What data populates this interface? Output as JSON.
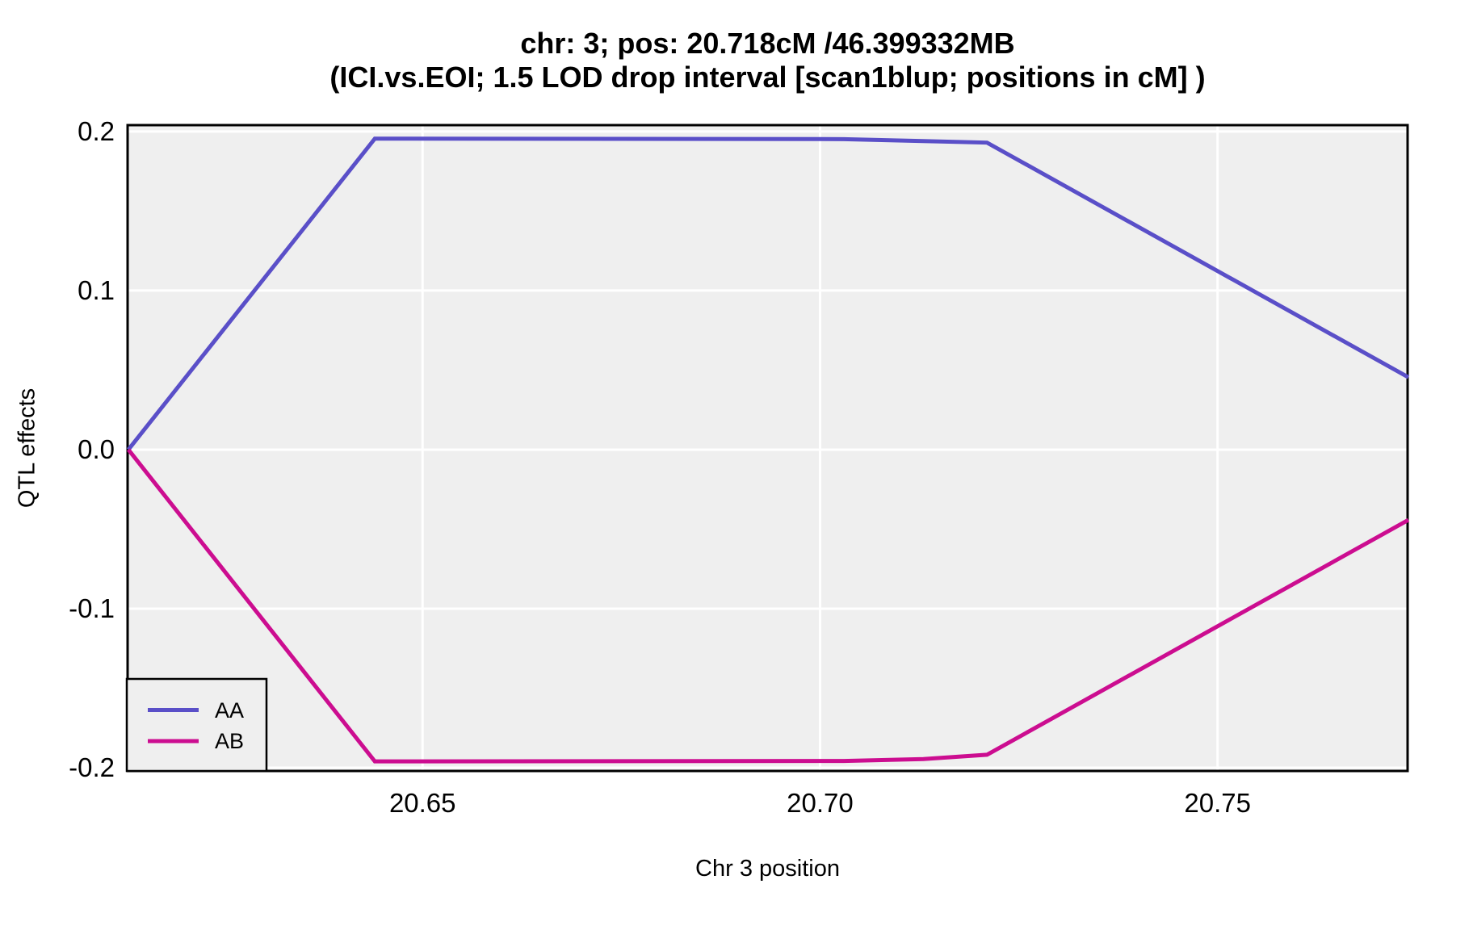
{
  "title": {
    "line1": "chr: 3; pos: 20.718cM /46.399332MB",
    "line2": "(ICI.vs.EOI; 1.5 LOD drop interval [scan1blup; positions in cM] )"
  },
  "axes": {
    "y_label": "QTL effects",
    "x_label": "Chr 3 position"
  },
  "legend": {
    "entries": [
      {
        "label": "AA",
        "color": "#5A4FC8"
      },
      {
        "label": "AB",
        "color": "#CC0D90"
      }
    ]
  },
  "colors": {
    "panel_bg": "#EFEFEF",
    "grid": "#FFFFFF",
    "border": "#000000",
    "text": "#000000",
    "aa_line": "#5A4FC8",
    "ab_line": "#CC0D90"
  },
  "chart_data": {
    "type": "line",
    "title": "chr: 3; pos: 20.718cM /46.399332MB (ICI.vs.EOI; 1.5 LOD drop interval [scan1blup; positions in cM] )",
    "xlabel": "Chr 3 position",
    "ylabel": "QTL effects",
    "x": [
      20.613,
      20.644,
      20.703,
      20.713,
      20.721,
      20.774
    ],
    "series": [
      {
        "name": "AA",
        "color": "#5A4FC8",
        "values": [
          0.0,
          0.1955,
          0.1952,
          0.194,
          0.193,
          0.0455
        ]
      },
      {
        "name": "AB",
        "color": "#CC0D90",
        "values": [
          0.0,
          -0.196,
          -0.1957,
          -0.1945,
          -0.1918,
          -0.0442
        ]
      }
    ],
    "xlim": [
      20.6129,
      20.7739
    ],
    "ylim": [
      -0.202,
      0.204
    ],
    "x_ticks": [
      {
        "value": 20.65,
        "label": "20.65"
      },
      {
        "value": 20.7,
        "label": "20.70"
      },
      {
        "value": 20.75,
        "label": "20.75"
      }
    ],
    "y_ticks": [
      {
        "value": 0.2,
        "label": "0.2"
      },
      {
        "value": 0.1,
        "label": "0.1"
      },
      {
        "value": 0.0,
        "label": "0.0"
      },
      {
        "value": -0.1,
        "label": "-0.1"
      },
      {
        "value": -0.2,
        "label": "-0.2"
      }
    ],
    "grid": "major-only",
    "legend_position": "bottom-left"
  }
}
